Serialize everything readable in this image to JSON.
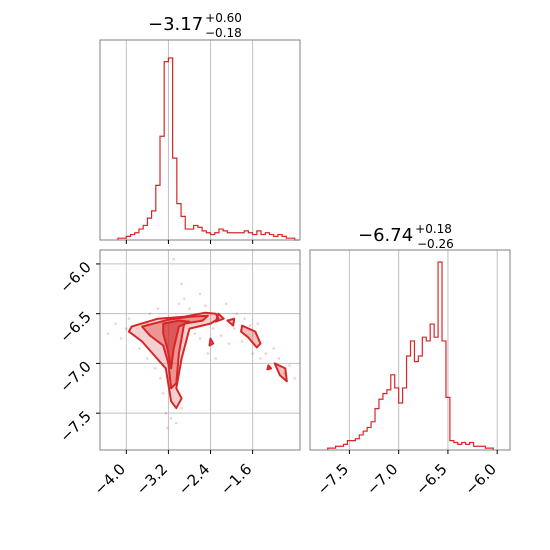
{
  "chart_data": [
    {
      "panel": "marginal-x",
      "type": "histogram",
      "title": {
        "median": "−3.17",
        "plus": "+0.60",
        "minus": "−0.18"
      },
      "xlim": [
        -4.5,
        -0.7
      ],
      "grid": true,
      "color": "#d62728",
      "bin_edges": [
        -4.16,
        -4.08,
        -4.0,
        -3.92,
        -3.84,
        -3.76,
        -3.68,
        -3.6,
        -3.52,
        -3.44,
        -3.36,
        -3.28,
        -3.2,
        -3.12,
        -3.04,
        -2.96,
        -2.88,
        -2.8,
        -2.72,
        -2.64,
        -2.56,
        -2.48,
        -2.4,
        -2.32,
        -2.24,
        -2.16,
        -2.08,
        -2.0,
        -1.92,
        -1.84,
        -1.76,
        -1.68,
        -1.6,
        -1.52,
        -1.44,
        -1.36,
        -1.28,
        -1.2,
        -1.12,
        -1.04,
        -0.96,
        -0.88,
        -0.8,
        -0.72
      ],
      "counts": [
        0.01,
        0.01,
        0.02,
        0.03,
        0.04,
        0.06,
        0.08,
        0.12,
        0.16,
        0.3,
        0.57,
        0.98,
        1.0,
        0.45,
        0.2,
        0.13,
        0.06,
        0.06,
        0.08,
        0.07,
        0.05,
        0.04,
        0.03,
        0.04,
        0.06,
        0.05,
        0.04,
        0.04,
        0.04,
        0.04,
        0.05,
        0.04,
        0.03,
        0.05,
        0.03,
        0.04,
        0.03,
        0.02,
        0.03,
        0.02,
        0.01,
        0.01,
        0.0
      ]
    },
    {
      "panel": "marginal-y",
      "type": "histogram",
      "title": {
        "median": "−6.74",
        "plus": "+0.18",
        "minus": "−0.26"
      },
      "xlim": [
        -7.9,
        -5.87
      ],
      "xticks": [
        "−7.5",
        "−7.0",
        "−6.5",
        "−6.0"
      ],
      "grid": true,
      "color": "#d62728",
      "bin_edges": [
        -7.72,
        -7.68,
        -7.64,
        -7.6,
        -7.56,
        -7.52,
        -7.48,
        -7.44,
        -7.4,
        -7.36,
        -7.32,
        -7.28,
        -7.24,
        -7.2,
        -7.16,
        -7.12,
        -7.08,
        -7.04,
        -7.0,
        -6.96,
        -6.92,
        -6.88,
        -6.84,
        -6.8,
        -6.76,
        -6.72,
        -6.68,
        -6.64,
        -6.6,
        -6.56,
        -6.52,
        -6.48,
        -6.44,
        -6.4,
        -6.36,
        -6.32,
        -6.28,
        -6.24,
        -6.2,
        -6.16,
        -6.12,
        -6.08,
        -6.04
      ],
      "counts": [
        0.01,
        0.01,
        0.02,
        0.02,
        0.03,
        0.05,
        0.05,
        0.06,
        0.08,
        0.1,
        0.12,
        0.15,
        0.22,
        0.27,
        0.3,
        0.32,
        0.4,
        0.33,
        0.25,
        0.33,
        0.5,
        0.58,
        0.47,
        0.5,
        0.6,
        0.58,
        0.67,
        0.6,
        1.0,
        0.58,
        0.28,
        0.05,
        0.04,
        0.03,
        0.04,
        0.03,
        0.04,
        0.02,
        0.02,
        0.02,
        0.01,
        0.01
      ]
    },
    {
      "panel": "joint",
      "type": "contour",
      "xlim": [
        -4.5,
        -0.7
      ],
      "ylim": [
        -7.87,
        -5.86
      ],
      "xticks": [
        "−4.0",
        "−3.2",
        "−2.4",
        "−1.6"
      ],
      "yticks": [
        "−6.0",
        "−6.5",
        "−7.0",
        "−7.5"
      ],
      "grid": true,
      "color": "#d62728",
      "contour_outer": [
        [
          -3.9,
          -6.63
        ],
        [
          -3.4,
          -6.55
        ],
        [
          -2.9,
          -6.53
        ],
        [
          -2.5,
          -6.49
        ],
        [
          -2.3,
          -6.5
        ],
        [
          -2.25,
          -6.55
        ],
        [
          -2.4,
          -6.6
        ],
        [
          -2.8,
          -6.65
        ],
        [
          -2.95,
          -6.95
        ],
        [
          -3.05,
          -7.25
        ],
        [
          -2.95,
          -7.35
        ],
        [
          -3.05,
          -7.45
        ],
        [
          -3.15,
          -7.38
        ],
        [
          -3.25,
          -7.05
        ],
        [
          -3.5,
          -6.9
        ],
        [
          -3.7,
          -6.78
        ],
        [
          -3.95,
          -6.68
        ]
      ],
      "contour_mid": [
        [
          -3.7,
          -6.63
        ],
        [
          -3.2,
          -6.56
        ],
        [
          -2.8,
          -6.53
        ],
        [
          -2.45,
          -6.52
        ],
        [
          -2.55,
          -6.57
        ],
        [
          -2.9,
          -6.6
        ],
        [
          -3.0,
          -6.9
        ],
        [
          -3.05,
          -7.2
        ],
        [
          -3.15,
          -7.25
        ],
        [
          -3.2,
          -7.0
        ],
        [
          -3.3,
          -6.82
        ],
        [
          -3.55,
          -6.72
        ]
      ],
      "contour_inner": [
        [
          -3.3,
          -6.6
        ],
        [
          -3.0,
          -6.57
        ],
        [
          -2.8,
          -6.58
        ],
        [
          -3.0,
          -6.63
        ],
        [
          -3.1,
          -6.85
        ],
        [
          -3.15,
          -7.05
        ],
        [
          -3.22,
          -6.85
        ],
        [
          -3.3,
          -6.7
        ]
      ],
      "islands": [
        [
          [
            -2.25,
            -6.5
          ],
          [
            -2.15,
            -6.55
          ],
          [
            -2.3,
            -6.58
          ]
        ],
        [
          [
            -2.08,
            -6.57
          ],
          [
            -1.95,
            -6.55
          ],
          [
            -1.97,
            -6.62
          ]
        ],
        [
          [
            -1.8,
            -6.62
          ],
          [
            -1.55,
            -6.68
          ],
          [
            -1.45,
            -6.8
          ],
          [
            -1.52,
            -6.84
          ],
          [
            -1.68,
            -6.74
          ],
          [
            -1.82,
            -6.68
          ]
        ],
        [
          [
            -1.18,
            -7.0
          ],
          [
            -0.98,
            -7.05
          ],
          [
            -0.95,
            -7.18
          ],
          [
            -1.08,
            -7.12
          ]
        ],
        [
          [
            -1.3,
            -7.02
          ],
          [
            -1.25,
            -7.05
          ],
          [
            -1.32,
            -7.06
          ]
        ],
        [
          [
            -2.4,
            -6.75
          ],
          [
            -2.35,
            -6.8
          ],
          [
            -2.42,
            -6.82
          ]
        ]
      ],
      "scatter_sample": [
        [
          -4.35,
          -6.7
        ],
        [
          -4.2,
          -6.6
        ],
        [
          -4.1,
          -6.75
        ],
        [
          -3.95,
          -6.55
        ],
        [
          -3.85,
          -6.72
        ],
        [
          -3.75,
          -6.85
        ],
        [
          -3.6,
          -6.95
        ],
        [
          -3.55,
          -6.5
        ],
        [
          -3.45,
          -7.05
        ],
        [
          -3.4,
          -6.45
        ],
        [
          -3.35,
          -7.15
        ],
        [
          -3.3,
          -7.3
        ],
        [
          -3.25,
          -7.5
        ],
        [
          -3.22,
          -7.65
        ],
        [
          -3.15,
          -7.55
        ],
        [
          -3.05,
          -7.6
        ],
        [
          -2.95,
          -7.45
        ],
        [
          -3.1,
          -5.95
        ],
        [
          -3.0,
          -6.4
        ],
        [
          -2.9,
          -6.35
        ],
        [
          -2.8,
          -6.45
        ],
        [
          -2.7,
          -6.7
        ],
        [
          -2.6,
          -6.75
        ],
        [
          -2.5,
          -6.42
        ],
        [
          -2.35,
          -6.65
        ],
        [
          -2.2,
          -6.72
        ],
        [
          -2.1,
          -6.4
        ],
        [
          -2.05,
          -6.8
        ],
        [
          -1.95,
          -6.65
        ],
        [
          -1.9,
          -6.5
        ],
        [
          -1.8,
          -6.78
        ],
        [
          -1.75,
          -6.55
        ],
        [
          -1.65,
          -6.62
        ],
        [
          -1.6,
          -6.9
        ],
        [
          -1.5,
          -6.6
        ],
        [
          -1.45,
          -6.95
        ],
        [
          -1.35,
          -6.9
        ],
        [
          -1.3,
          -7.05
        ],
        [
          -1.2,
          -6.85
        ],
        [
          -1.1,
          -6.95
        ],
        [
          -1.0,
          -7.1
        ],
        [
          -0.9,
          -7.02
        ],
        [
          -0.8,
          -7.15
        ],
        [
          -2.95,
          -6.2
        ],
        [
          -2.6,
          -6.3
        ],
        [
          -3.6,
          -6.6
        ],
        [
          -4.0,
          -6.65
        ],
        [
          -2.45,
          -6.9
        ],
        [
          -2.3,
          -6.95
        ],
        [
          -1.7,
          -6.72
        ]
      ]
    }
  ]
}
